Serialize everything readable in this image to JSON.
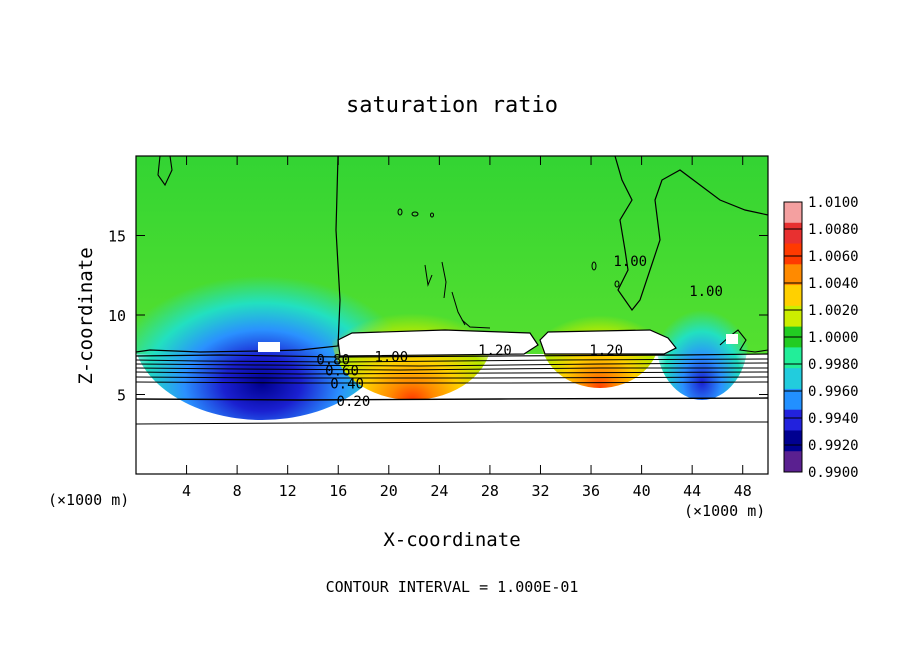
{
  "chart_data": {
    "type": "heatmap",
    "title": "saturation ratio",
    "xlabel": "X-coordinate",
    "ylabel": "Z-coordinate",
    "x_unit_left": "(×1000 m)",
    "x_unit_right": "(×1000 m)",
    "footer": "CONTOUR INTERVAL = 1.000E-01",
    "xlim": [
      0,
      50
    ],
    "ylim": [
      0,
      20
    ],
    "x_ticks": [
      4,
      8,
      12,
      16,
      20,
      24,
      28,
      32,
      36,
      40,
      44,
      48
    ],
    "y_ticks": [
      5,
      10,
      15
    ],
    "colorbar": {
      "min": 0.99,
      "max": 1.01,
      "labels": [
        "1.0100",
        "1.0080",
        "1.0060",
        "1.0040",
        "1.0020",
        "1.0000",
        "0.9980",
        "0.9960",
        "0.9940",
        "0.9920",
        "0.9900"
      ],
      "colors": [
        "#f4a0a0",
        "#e83030",
        "#ff3a00",
        "#ff8a00",
        "#ffd000",
        "#ccee00",
        "#22cc22",
        "#22ee99",
        "#22ccdd",
        "#2290ff",
        "#2222dd",
        "#000090",
        "#5a2090"
      ]
    },
    "contour_labels": [
      {
        "text": "0.20",
        "x": 17.2,
        "y": 4.6
      },
      {
        "text": "0.40",
        "x": 16.7,
        "y": 5.7
      },
      {
        "text": "0.60",
        "x": 16.3,
        "y": 6.5
      },
      {
        "text": "0.80",
        "x": 15.6,
        "y": 7.2
      },
      {
        "text": "1.00",
        "x": 20.2,
        "y": 7.4
      },
      {
        "text": "1.20",
        "x": 28.4,
        "y": 7.8
      },
      {
        "text": "1.20",
        "x": 37.2,
        "y": 7.8
      },
      {
        "text": "1.00",
        "x": 39.1,
        "y": 13.4
      },
      {
        "text": "1.00",
        "x": 45.1,
        "y": 11.5
      }
    ],
    "grid": false,
    "legend": "right colorbar"
  }
}
